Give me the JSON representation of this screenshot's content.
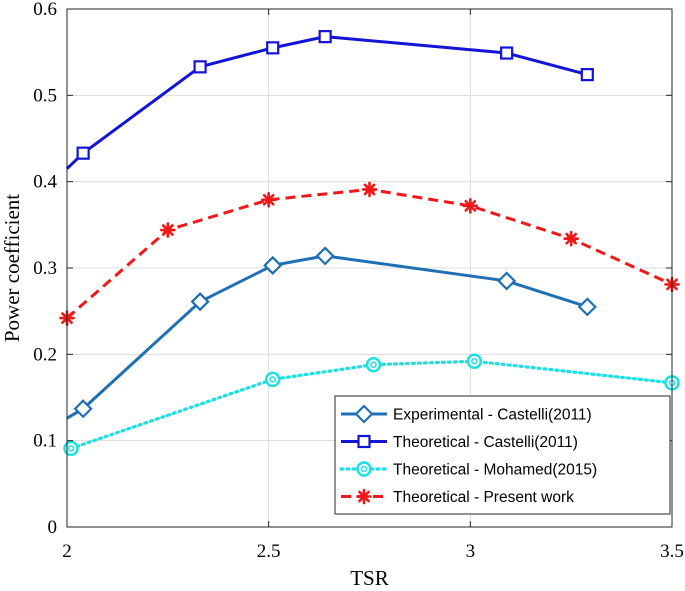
{
  "chart_data": {
    "type": "line",
    "title": "",
    "xlabel": "TSR",
    "ylabel": "Power coefficient",
    "xlim": [
      2,
      3.5
    ],
    "ylim": [
      0,
      0.6
    ],
    "xticks": [
      2,
      2.5,
      3,
      3.5
    ],
    "xtick_labels": [
      "2",
      "2.5",
      "3",
      "3.5"
    ],
    "yticks": [
      0,
      0.1,
      0.2,
      0.3,
      0.4,
      0.5,
      0.6
    ],
    "ytick_labels": [
      "0",
      "0.1",
      "0.2",
      "0.3",
      "0.4",
      "0.5",
      "0.6"
    ],
    "grid": true,
    "legend_position": "bottom-right",
    "series": [
      {
        "name": "Experimental - Castelli(2011)",
        "color": "#1f6fb4",
        "line_style": "solid",
        "marker": "diamond",
        "line_start": [
          2.0,
          0.126
        ],
        "x": [
          2.04,
          2.33,
          2.51,
          2.64,
          3.09,
          3.29
        ],
        "y": [
          0.137,
          0.261,
          0.303,
          0.314,
          0.285,
          0.255
        ]
      },
      {
        "name": "Theoretical - Castelli(2011)",
        "color": "#1414d6",
        "line_style": "solid",
        "marker": "square",
        "line_start": [
          2.0,
          0.415
        ],
        "x": [
          2.04,
          2.33,
          2.51,
          2.64,
          3.09,
          3.29
        ],
        "y": [
          0.433,
          0.533,
          0.555,
          0.568,
          0.549,
          0.524
        ]
      },
      {
        "name": "Theoretical - Mohamed(2015)",
        "color": "#1fe0e0",
        "line_style": "dotted",
        "marker": "circle",
        "x": [
          2.01,
          2.51,
          2.76,
          3.01,
          3.5
        ],
        "y": [
          0.091,
          0.171,
          0.188,
          0.192,
          0.167
        ]
      },
      {
        "name": "Theoretical - Present work",
        "color": "#f01818",
        "line_style": "dashed",
        "marker": "star",
        "x": [
          2.0,
          2.25,
          2.5,
          2.75,
          3.0,
          3.25,
          3.5
        ],
        "y": [
          0.242,
          0.344,
          0.379,
          0.391,
          0.372,
          0.334,
          0.281
        ]
      }
    ]
  }
}
